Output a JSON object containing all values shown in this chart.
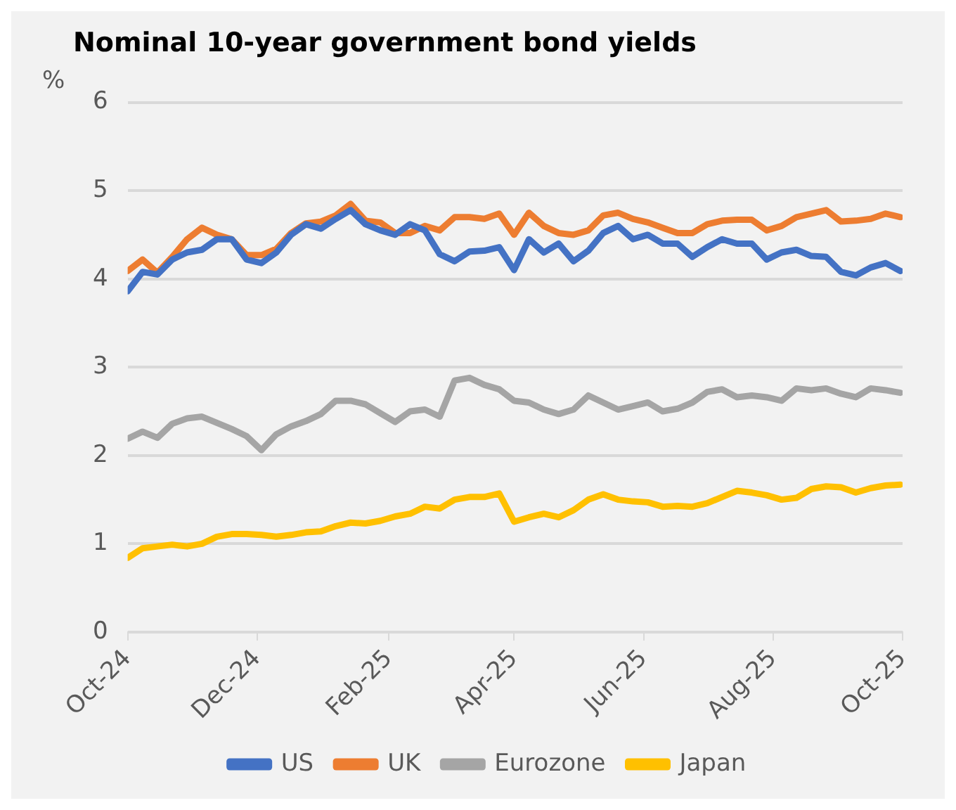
{
  "chart_data": {
    "type": "line",
    "title": "Nominal 10-year government bond yields",
    "ylabel": "%",
    "x": [
      "2024-10-01",
      "2024-10-08",
      "2024-10-15",
      "2024-10-22",
      "2024-10-29",
      "2024-11-05",
      "2024-11-12",
      "2024-11-19",
      "2024-11-26",
      "2024-12-03",
      "2024-12-10",
      "2024-12-17",
      "2024-12-24",
      "2024-12-31",
      "2025-01-07",
      "2025-01-14",
      "2025-01-21",
      "2025-01-28",
      "2025-02-04",
      "2025-02-11",
      "2025-02-18",
      "2025-02-25",
      "2025-03-04",
      "2025-03-11",
      "2025-03-18",
      "2025-03-25",
      "2025-04-01",
      "2025-04-08",
      "2025-04-15",
      "2025-04-22",
      "2025-04-29",
      "2025-05-06",
      "2025-05-13",
      "2025-05-20",
      "2025-05-27",
      "2025-06-03",
      "2025-06-10",
      "2025-06-17",
      "2025-06-24",
      "2025-07-01",
      "2025-07-08",
      "2025-07-15",
      "2025-07-22",
      "2025-07-29",
      "2025-08-05",
      "2025-08-12",
      "2025-08-19",
      "2025-08-26",
      "2025-09-02",
      "2025-09-09",
      "2025-09-16",
      "2025-09-23",
      "2025-09-30"
    ],
    "series": [
      {
        "name": "US",
        "color": "#4472c4",
        "values": [
          3.86,
          4.08,
          4.05,
          4.22,
          4.3,
          4.33,
          4.45,
          4.45,
          4.22,
          4.18,
          4.3,
          4.5,
          4.62,
          4.57,
          4.68,
          4.78,
          4.62,
          4.55,
          4.5,
          4.62,
          4.55,
          4.28,
          4.2,
          4.31,
          4.32,
          4.36,
          4.1,
          4.45,
          4.3,
          4.4,
          4.2,
          4.32,
          4.52,
          4.6,
          4.45,
          4.5,
          4.4,
          4.4,
          4.25,
          4.36,
          4.45,
          4.4,
          4.4,
          4.22,
          4.3,
          4.33,
          4.26,
          4.25,
          4.08,
          4.04,
          4.13,
          4.18,
          4.09
        ]
      },
      {
        "name": "UK",
        "color": "#ed7d31",
        "values": [
          4.09,
          4.22,
          4.07,
          4.25,
          4.45,
          4.58,
          4.5,
          4.45,
          4.27,
          4.27,
          4.34,
          4.52,
          4.63,
          4.65,
          4.72,
          4.85,
          4.66,
          4.64,
          4.52,
          4.52,
          4.6,
          4.55,
          4.7,
          4.7,
          4.68,
          4.74,
          4.5,
          4.75,
          4.6,
          4.52,
          4.5,
          4.55,
          4.72,
          4.75,
          4.68,
          4.64,
          4.58,
          4.52,
          4.52,
          4.62,
          4.66,
          4.67,
          4.67,
          4.55,
          4.6,
          4.7,
          4.74,
          4.78,
          4.65,
          4.66,
          4.68,
          4.74,
          4.7
        ]
      },
      {
        "name": "Eurozone",
        "color": "#a5a5a5",
        "values": [
          2.19,
          2.27,
          2.2,
          2.36,
          2.42,
          2.44,
          2.37,
          2.3,
          2.22,
          2.06,
          2.24,
          2.33,
          2.39,
          2.47,
          2.62,
          2.62,
          2.58,
          2.48,
          2.38,
          2.5,
          2.52,
          2.44,
          2.85,
          2.88,
          2.8,
          2.75,
          2.62,
          2.6,
          2.52,
          2.47,
          2.52,
          2.68,
          2.6,
          2.52,
          2.56,
          2.6,
          2.5,
          2.53,
          2.6,
          2.72,
          2.75,
          2.66,
          2.68,
          2.66,
          2.62,
          2.76,
          2.74,
          2.76,
          2.7,
          2.66,
          2.76,
          2.74,
          2.71
        ]
      },
      {
        "name": "Japan",
        "color": "#ffc000",
        "values": [
          0.84,
          0.95,
          0.97,
          0.99,
          0.97,
          1.0,
          1.08,
          1.11,
          1.11,
          1.1,
          1.08,
          1.1,
          1.13,
          1.14,
          1.2,
          1.24,
          1.23,
          1.26,
          1.31,
          1.34,
          1.42,
          1.4,
          1.5,
          1.53,
          1.53,
          1.57,
          1.25,
          1.3,
          1.34,
          1.3,
          1.38,
          1.5,
          1.56,
          1.5,
          1.48,
          1.47,
          1.42,
          1.43,
          1.42,
          1.46,
          1.53,
          1.6,
          1.58,
          1.55,
          1.5,
          1.52,
          1.62,
          1.65,
          1.64,
          1.58,
          1.63,
          1.66,
          1.67
        ]
      }
    ],
    "xlim": [
      "2024-10-01",
      "2025-10-01"
    ],
    "xticks": [
      {
        "value": "2024-10-01",
        "label": "Oct-24"
      },
      {
        "value": "2024-12-01",
        "label": "Dec-24"
      },
      {
        "value": "2025-02-01",
        "label": "Feb-25"
      },
      {
        "value": "2025-04-01",
        "label": "Apr-25"
      },
      {
        "value": "2025-06-01",
        "label": "Jun-25"
      },
      {
        "value": "2025-08-01",
        "label": "Aug-25"
      },
      {
        "value": "2025-10-01",
        "label": "Oct-25"
      }
    ],
    "ylim": [
      0,
      6
    ],
    "yticks": [
      0,
      1,
      2,
      3,
      4,
      5,
      6
    ],
    "grid": "y",
    "legend": "bottom",
    "marker": "none",
    "line_style": "solid"
  }
}
